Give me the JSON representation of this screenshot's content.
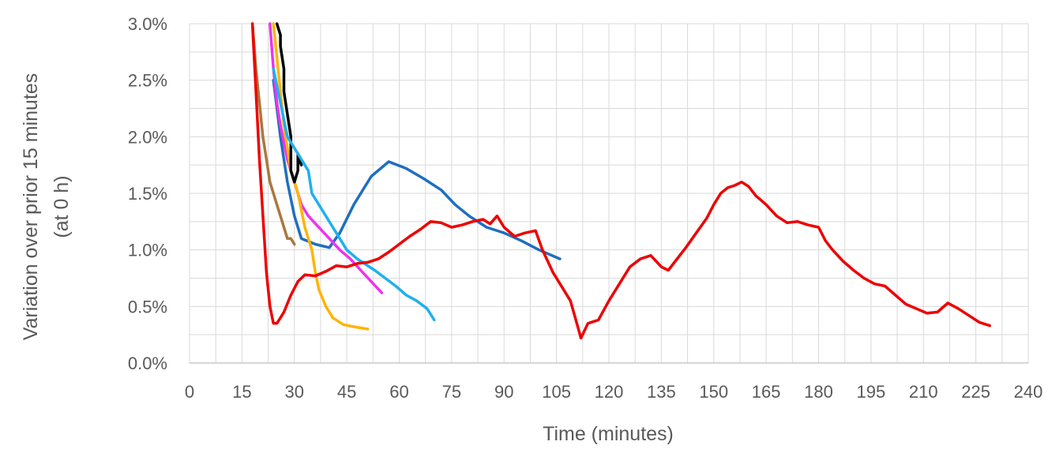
{
  "chart_data": {
    "type": "line",
    "title": "",
    "xlabel": "Time (minutes)",
    "ylabel_lines": [
      "Variation over prior 15 minutes",
      "(at 0 h)"
    ],
    "xlim": [
      0,
      240
    ],
    "ylim": [
      0,
      0.03
    ],
    "x_ticks": [
      "0",
      "15",
      "30",
      "45",
      "60",
      "75",
      "90",
      "105",
      "120",
      "135",
      "150",
      "165",
      "180",
      "195",
      "210",
      "225",
      "240"
    ],
    "y_ticks": [
      "0.0%",
      "0.5%",
      "1.0%",
      "1.5%",
      "2.0%",
      "2.5%",
      "3.0%"
    ],
    "grid": true,
    "legend": "none",
    "series": [
      {
        "color": "#1F6FBF",
        "points": [
          [
            24,
            0.025
          ],
          [
            26,
            0.02
          ],
          [
            28,
            0.016
          ],
          [
            30,
            0.013
          ],
          [
            32,
            0.011
          ],
          [
            36,
            0.0105
          ],
          [
            40,
            0.0102
          ],
          [
            43,
            0.0115
          ],
          [
            47,
            0.014
          ],
          [
            52,
            0.0165
          ],
          [
            57,
            0.0178
          ],
          [
            62,
            0.0172
          ],
          [
            67,
            0.0163
          ],
          [
            72,
            0.0153
          ],
          [
            76,
            0.014
          ],
          [
            80,
            0.013
          ],
          [
            85,
            0.012
          ],
          [
            90,
            0.0115
          ],
          [
            95,
            0.0108
          ],
          [
            100,
            0.01
          ],
          [
            106,
            0.0092
          ]
        ]
      },
      {
        "color": "#A97840",
        "points": [
          [
            18,
            0.03
          ],
          [
            19,
            0.026
          ],
          [
            20,
            0.023
          ],
          [
            21,
            0.02
          ],
          [
            22,
            0.018
          ],
          [
            23,
            0.016
          ],
          [
            24,
            0.015
          ],
          [
            25,
            0.014
          ],
          [
            26,
            0.013
          ],
          [
            27,
            0.012
          ],
          [
            28,
            0.011
          ],
          [
            29,
            0.011
          ],
          [
            30,
            0.0105
          ]
        ]
      },
      {
        "color": "#EE33EE",
        "points": [
          [
            23,
            0.03
          ],
          [
            24,
            0.026
          ],
          [
            25,
            0.023
          ],
          [
            26,
            0.021
          ],
          [
            28,
            0.018
          ],
          [
            30,
            0.016
          ],
          [
            32,
            0.014
          ],
          [
            34,
            0.013
          ],
          [
            37,
            0.012
          ],
          [
            40,
            0.011
          ],
          [
            43,
            0.01
          ],
          [
            46,
            0.0092
          ],
          [
            49,
            0.0082
          ],
          [
            52,
            0.0072
          ],
          [
            55,
            0.0062
          ]
        ]
      },
      {
        "color": "#FFB400",
        "points": [
          [
            24,
            0.03
          ],
          [
            25,
            0.027
          ],
          [
            26,
            0.024
          ],
          [
            27,
            0.021
          ],
          [
            28,
            0.019
          ],
          [
            29,
            0.017
          ],
          [
            31,
            0.015
          ],
          [
            33,
            0.012
          ],
          [
            35,
            0.01
          ],
          [
            36,
            0.008
          ],
          [
            37,
            0.0065
          ],
          [
            39,
            0.005
          ],
          [
            41,
            0.004
          ],
          [
            44,
            0.0034
          ],
          [
            47,
            0.0032
          ],
          [
            51,
            0.003
          ]
        ]
      },
      {
        "color": "#000000",
        "points": [
          [
            25,
            0.03
          ],
          [
            26,
            0.029
          ],
          [
            26,
            0.028
          ],
          [
            27,
            0.026
          ],
          [
            27,
            0.024
          ],
          [
            28,
            0.022
          ],
          [
            29,
            0.02
          ],
          [
            29,
            0.017
          ],
          [
            30,
            0.016
          ],
          [
            31,
            0.017
          ],
          [
            31,
            0.0185
          ],
          [
            32,
            0.0175
          ]
        ]
      },
      {
        "color": "#1FB0EE",
        "points": [
          [
            24,
            0.026
          ],
          [
            26,
            0.023
          ],
          [
            28,
            0.02
          ],
          [
            30,
            0.019
          ],
          [
            32,
            0.018
          ],
          [
            34,
            0.017
          ],
          [
            35,
            0.015
          ],
          [
            37,
            0.014
          ],
          [
            39,
            0.013
          ],
          [
            41,
            0.012
          ],
          [
            43,
            0.011
          ],
          [
            45,
            0.01
          ],
          [
            48,
            0.0092
          ],
          [
            50,
            0.0088
          ],
          [
            53,
            0.0082
          ],
          [
            56,
            0.0075
          ],
          [
            59,
            0.0068
          ],
          [
            62,
            0.006
          ],
          [
            65,
            0.0055
          ],
          [
            68,
            0.0048
          ],
          [
            70,
            0.0038
          ]
        ]
      },
      {
        "color": "#EE0000",
        "points": [
          [
            18,
            0.03
          ],
          [
            19,
            0.024
          ],
          [
            20,
            0.018
          ],
          [
            21,
            0.013
          ],
          [
            22,
            0.008
          ],
          [
            23,
            0.005
          ],
          [
            24,
            0.0035
          ],
          [
            25,
            0.0035
          ],
          [
            26,
            0.004
          ],
          [
            27,
            0.0045
          ],
          [
            29,
            0.006
          ],
          [
            31,
            0.0072
          ],
          [
            33,
            0.0078
          ],
          [
            36,
            0.0077
          ],
          [
            39,
            0.0081
          ],
          [
            42,
            0.0086
          ],
          [
            45,
            0.0085
          ],
          [
            48,
            0.0088
          ],
          [
            51,
            0.0089
          ],
          [
            54,
            0.0092
          ],
          [
            57,
            0.0098
          ],
          [
            60,
            0.0105
          ],
          [
            63,
            0.0112
          ],
          [
            66,
            0.0118
          ],
          [
            69,
            0.0125
          ],
          [
            72,
            0.0124
          ],
          [
            75,
            0.012
          ],
          [
            78,
            0.0122
          ],
          [
            81,
            0.0125
          ],
          [
            84,
            0.0127
          ],
          [
            86,
            0.0123
          ],
          [
            88,
            0.013
          ],
          [
            90,
            0.012
          ],
          [
            93,
            0.0112
          ],
          [
            96,
            0.0115
          ],
          [
            99,
            0.0117
          ],
          [
            101,
            0.01
          ],
          [
            104,
            0.008
          ],
          [
            107,
            0.0065
          ],
          [
            109,
            0.0055
          ],
          [
            111,
            0.0033
          ],
          [
            112,
            0.0022
          ],
          [
            114,
            0.0035
          ],
          [
            117,
            0.0038
          ],
          [
            120,
            0.0055
          ],
          [
            123,
            0.007
          ],
          [
            126,
            0.0085
          ],
          [
            129,
            0.0092
          ],
          [
            132,
            0.0095
          ],
          [
            135,
            0.0085
          ],
          [
            137,
            0.0082
          ],
          [
            139,
            0.009
          ],
          [
            142,
            0.0102
          ],
          [
            145,
            0.0115
          ],
          [
            148,
            0.0128
          ],
          [
            150,
            0.014
          ],
          [
            152,
            0.015
          ],
          [
            154,
            0.0155
          ],
          [
            156,
            0.0157
          ],
          [
            158,
            0.016
          ],
          [
            160,
            0.0156
          ],
          [
            162,
            0.0148
          ],
          [
            165,
            0.014
          ],
          [
            168,
            0.013
          ],
          [
            171,
            0.0124
          ],
          [
            174,
            0.0125
          ],
          [
            177,
            0.0122
          ],
          [
            180,
            0.012
          ],
          [
            182,
            0.0108
          ],
          [
            184,
            0.01
          ],
          [
            187,
            0.009
          ],
          [
            190,
            0.0082
          ],
          [
            193,
            0.0075
          ],
          [
            196,
            0.007
          ],
          [
            199,
            0.0068
          ],
          [
            202,
            0.006
          ],
          [
            205,
            0.0052
          ],
          [
            208,
            0.0048
          ],
          [
            211,
            0.0044
          ],
          [
            214,
            0.0045
          ],
          [
            217,
            0.0053
          ],
          [
            220,
            0.0048
          ],
          [
            223,
            0.0042
          ],
          [
            226,
            0.0036
          ],
          [
            229,
            0.0033
          ]
        ]
      }
    ]
  }
}
